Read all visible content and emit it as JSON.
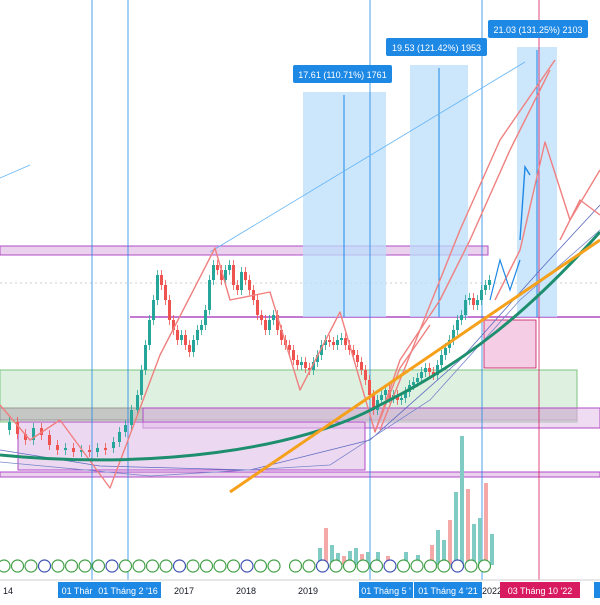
{
  "chart_data": {
    "type": "line",
    "title": "",
    "xlabel": "",
    "ylabel": "",
    "x_ticks": [
      "14",
      "2017",
      "2018",
      "2019",
      "2022"
    ],
    "highlighted_dates": [
      "01 Thár",
      "01 Tháng 2 '16",
      "01 Tháng 5 '",
      "01 Tháng 4 '21",
      "03 Tháng 10 '22"
    ],
    "measure_labels": [
      "17.61 (110.71%) 1761",
      "19.53 (121.42%) 1953",
      "21.03 (131.25%) 2103"
    ],
    "colors": {
      "up_candle": "#26a69a",
      "down_candle": "#ef5350",
      "trend_curve": "#1e8f6e",
      "trend_line": "#f5a11c",
      "projection": "#f08080",
      "measure_box": "#bbdefb",
      "purple_zone": "#e1bee7",
      "green_zone": "#c8e6c9",
      "gray_zone": "#bdbdbd",
      "date_marker": "#1e88e5",
      "date_marker_active": "#d81b60"
    }
  }
}
